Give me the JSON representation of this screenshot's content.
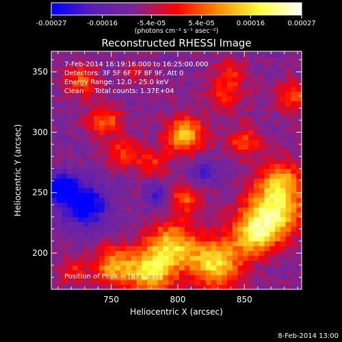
{
  "chart_data": {
    "type": "heatmap",
    "title": "Reconstructed RHESSI Image",
    "xlabel": "Heliocentric X (arcsec)",
    "ylabel": "Heliocentric Y (arcsec)",
    "xlim": [
      705,
      893
    ],
    "ylim": [
      170,
      367
    ],
    "x_ticks": [
      750,
      800,
      850
    ],
    "y_ticks": [
      200,
      250,
      300,
      350
    ],
    "colorbar": {
      "min": -0.00027,
      "max": 0.00027,
      "tick_values": [
        -0.00027,
        -0.00016,
        -5.4e-05,
        5.4e-05,
        0.00016,
        0.00027
      ],
      "tick_labels": [
        "-0.00027",
        "-0.00016",
        "-5.4e-05",
        "5.4e-05",
        "0.00016",
        "0.00027"
      ],
      "unit_label": "(photons cm⁻² s⁻¹ asec⁻²)",
      "colors": [
        "#0000ff",
        "#5a1fb4",
        "#7a2596",
        "#ff0000",
        "#ff8c00",
        "#ffff40",
        "#ffffff"
      ]
    },
    "annotations": [
      "7-Feb-2014 16:19:16.000 to 16:25:00.000",
      "Detectors: 3F 5F 6F 7F 8F 9F, Att 0",
      "Energy Range: 12.0 - 25.0 keV",
      "Clean     Total counts: 1.37E+04"
    ],
    "peak_label": "Position of Peak = [873,237]",
    "peak_position": [
      873,
      237
    ],
    "sources": [
      {
        "x": 805,
        "y": 298,
        "r": 10,
        "v": 0.00024
      },
      {
        "x": 745,
        "y": 310,
        "r": 9,
        "v": 0.00015
      },
      {
        "x": 760,
        "y": 283,
        "r": 9,
        "v": 0.00012
      },
      {
        "x": 782,
        "y": 275,
        "r": 8,
        "v": 0.0001
      },
      {
        "x": 728,
        "y": 343,
        "r": 9,
        "v": 0.00014
      },
      {
        "x": 835,
        "y": 330,
        "r": 10,
        "v": 0.00011
      },
      {
        "x": 850,
        "y": 292,
        "r": 9,
        "v": 0.00013
      },
      {
        "x": 878,
        "y": 262,
        "r": 11,
        "v": 0.00016
      },
      {
        "x": 873,
        "y": 237,
        "r": 15,
        "v": 0.00027
      },
      {
        "x": 858,
        "y": 216,
        "r": 12,
        "v": 0.00024
      },
      {
        "x": 828,
        "y": 192,
        "r": 14,
        "v": 0.00025
      },
      {
        "x": 795,
        "y": 207,
        "r": 13,
        "v": 0.00023
      },
      {
        "x": 780,
        "y": 185,
        "r": 12,
        "v": 0.00024
      },
      {
        "x": 752,
        "y": 190,
        "r": 11,
        "v": 0.0002
      },
      {
        "x": 805,
        "y": 245,
        "r": 9,
        "v": 0.00014
      },
      {
        "x": 720,
        "y": 185,
        "r": 8,
        "v": 0.0001
      },
      {
        "x": 888,
        "y": 330,
        "r": 10,
        "v": 0.00012
      },
      {
        "x": 840,
        "y": 350,
        "r": 8,
        "v": 9e-05
      },
      {
        "x": 770,
        "y": 350,
        "r": 7,
        "v": 7e-05
      },
      {
        "x": 730,
        "y": 240,
        "r": 12,
        "v": -0.00022
      },
      {
        "x": 712,
        "y": 255,
        "r": 8,
        "v": -0.00026
      },
      {
        "x": 785,
        "y": 248,
        "r": 7,
        "v": -0.00012
      },
      {
        "x": 820,
        "y": 268,
        "r": 7,
        "v": -0.0001
      }
    ],
    "base_value": -9e-05
  },
  "footer_date": "8-Feb-2014 13:00"
}
